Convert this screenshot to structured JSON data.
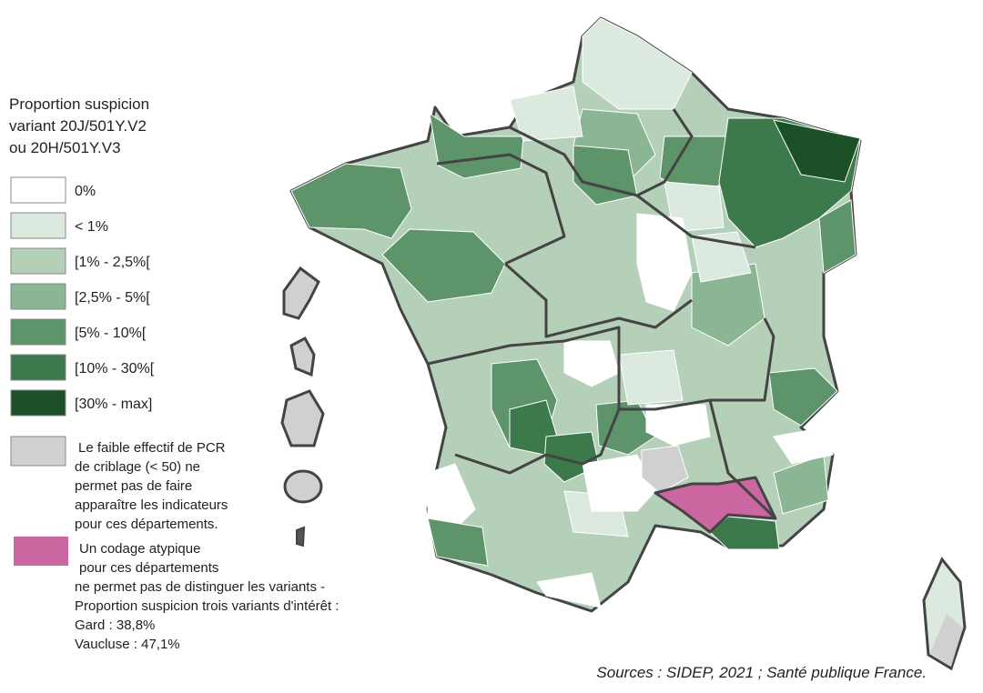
{
  "legend": {
    "title": [
      "Proportion suspicion",
      "variant 20J/501Y.V2",
      "ou 20H/501Y.V3"
    ],
    "items": [
      {
        "label": "0%",
        "color": "#ffffff"
      },
      {
        "label": "< 1%",
        "color": "#dce9de"
      },
      {
        "label": "[1% - 2,5%[",
        "color": "#b5d0b9"
      },
      {
        "label": "[2,5% - 5%[",
        "color": "#8ab694"
      },
      {
        "label": "[5% - 10%[",
        "color": "#5e946a"
      },
      {
        "label": "[10% - 30%[",
        "color": "#3d7a4b"
      },
      {
        "label": "[30% - max]",
        "color": "#1c5128"
      }
    ],
    "grey_note": {
      "color": "#d0d0d0",
      "lines": [
        "Le faible effectif de PCR",
        "de criblage (< 50) ne",
        "permet pas de faire",
        "apparaître les indicateurs",
        "pour ces départements."
      ]
    },
    "pink_note": {
      "color": "#cc66a0",
      "lines": [
        "Un codage atypique",
        "pour ces départements",
        "ne permet pas de distinguer les variants -",
        "Proportion suspicion trois variants d'intérêt :",
        "Gard : 38,8%",
        "Vaucluse : 47,1%"
      ]
    }
  },
  "source": "Sources : SIDEP, 2021 ; Santé publique France."
}
